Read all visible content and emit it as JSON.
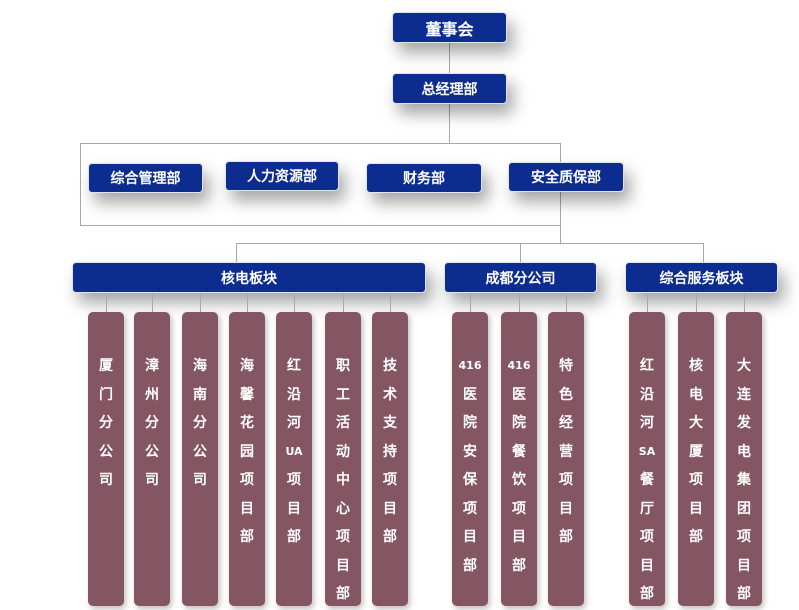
{
  "colors": {
    "header_box": "#0c2c8f",
    "unit_box": "#845663",
    "connector": "#a8a8a8"
  },
  "board": "董事会",
  "gm": "总经理部",
  "departments": [
    "综合管理部",
    "人力资源部",
    "财务部",
    "安全质保部"
  ],
  "sectors": [
    {
      "name": "核电板块",
      "units": [
        "厦门分公司",
        "漳州分公司",
        "海南分公司",
        "海馨花园项目部",
        "红沿河UA项目部",
        "职工活动中心项目部",
        "技术支持项目部"
      ]
    },
    {
      "name": "成都分公司",
      "units": [
        "416医院安保项目部",
        "416医院餐饮项目部",
        "特色经营项目部"
      ]
    },
    {
      "name": "综合服务板块",
      "units": [
        "红沿河SA餐厅项目部",
        "核电大厦项目部",
        "大连发电集团项目部"
      ]
    }
  ]
}
